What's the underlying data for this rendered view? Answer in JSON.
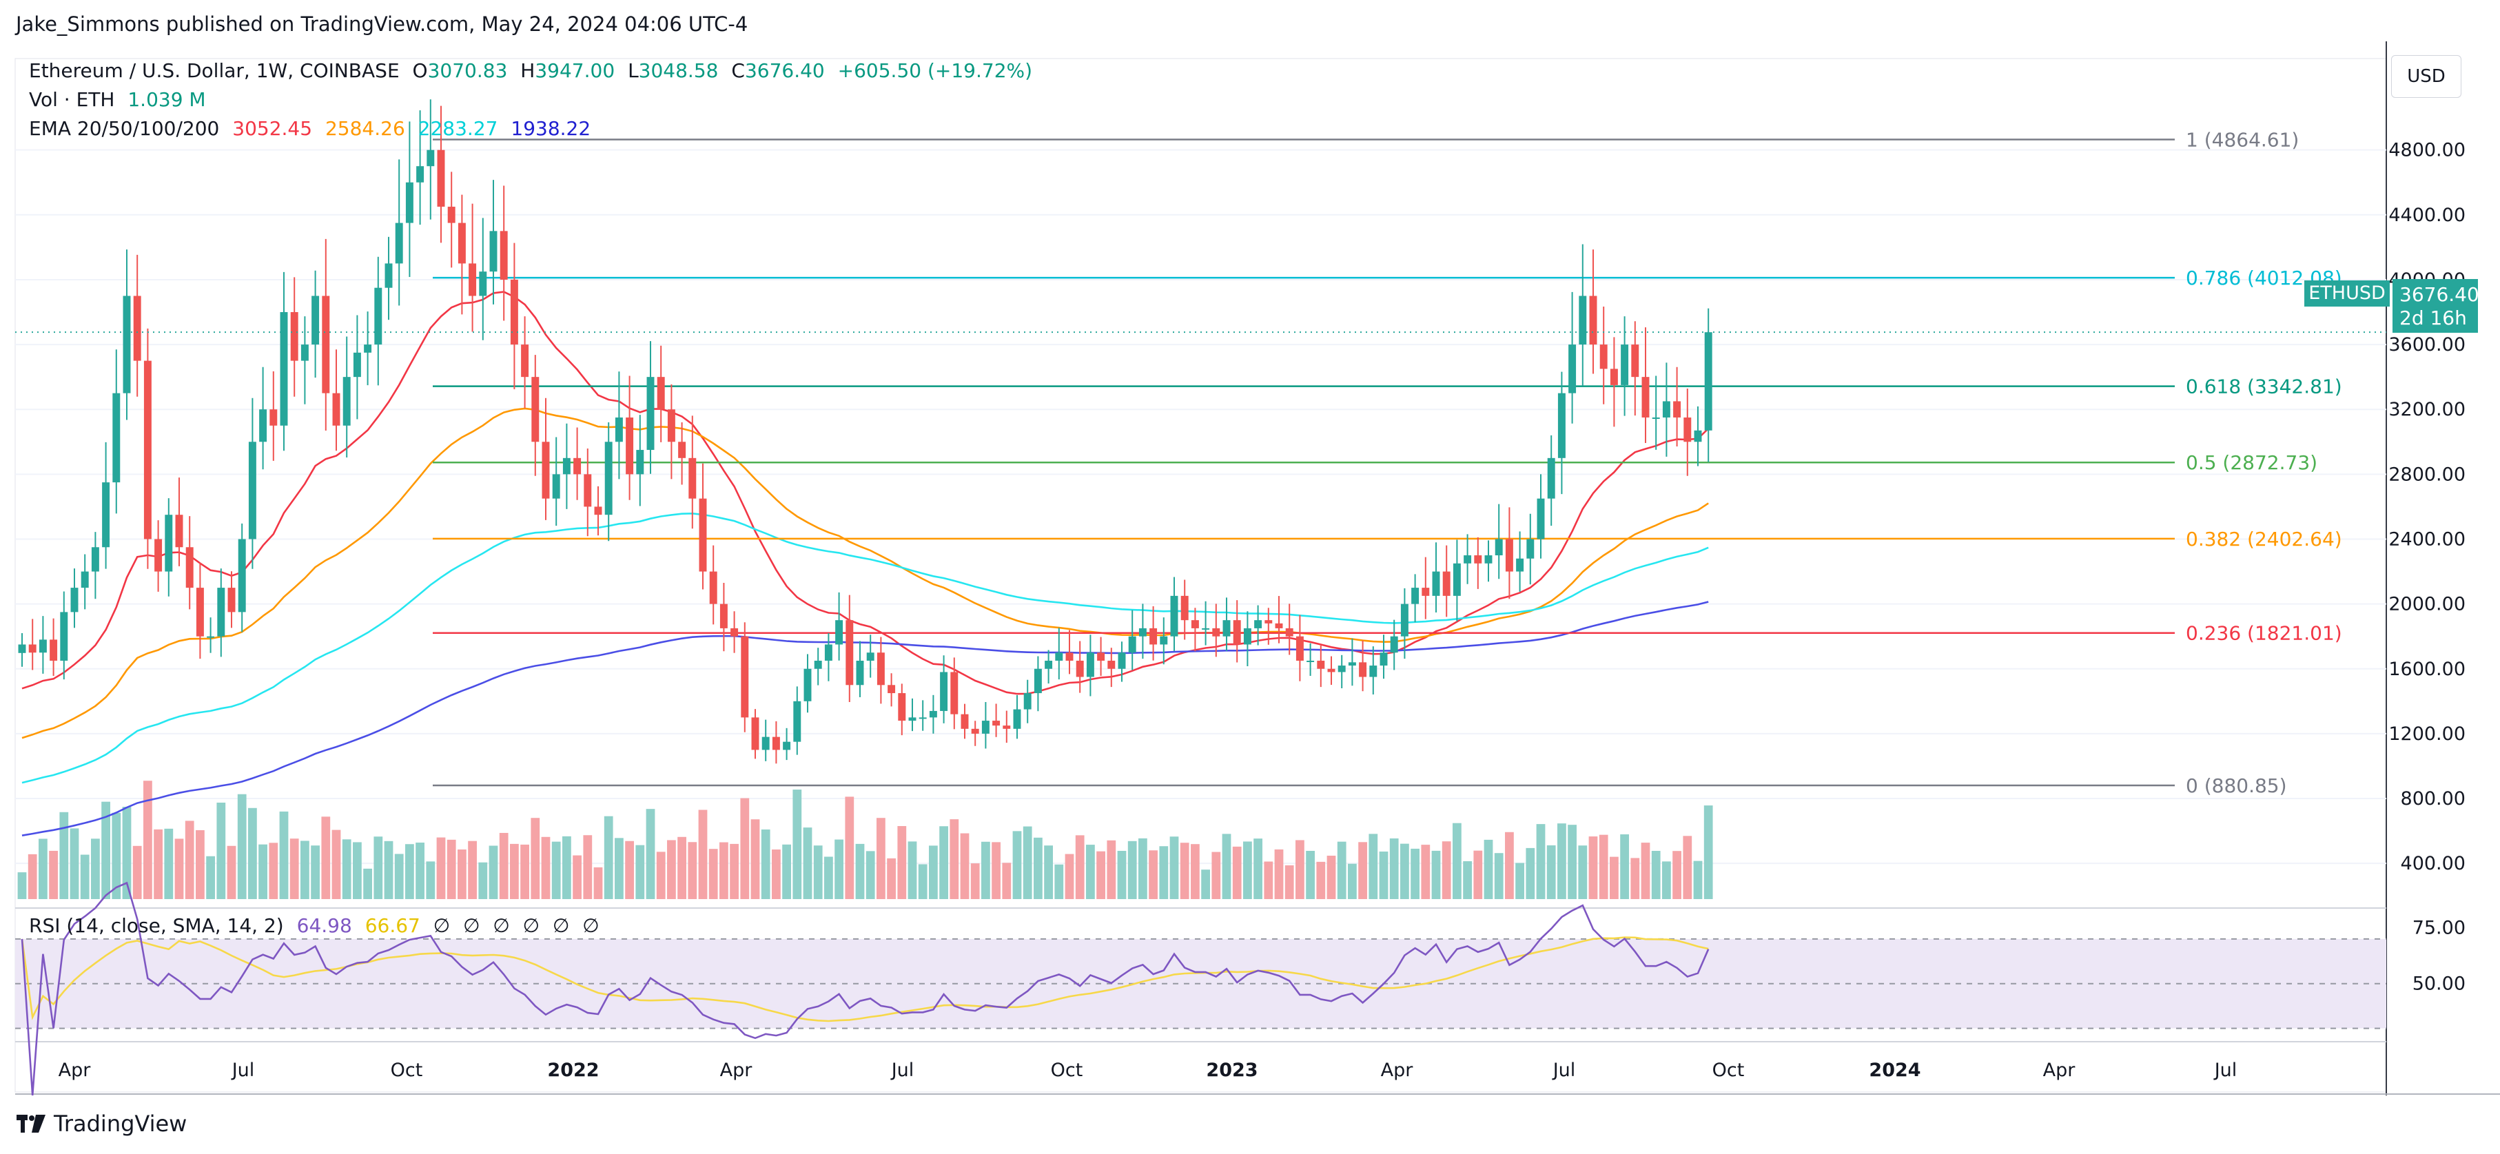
{
  "header": {
    "publisher": "Jake_Simmons published on TradingView.com, May 24, 2024 04:06 UTC-4"
  },
  "legend": {
    "symbol": "Ethereum / U.S. Dollar, 1W, COINBASE",
    "open_label": "O",
    "open": "3070.83",
    "high_label": "H",
    "high": "3947.00",
    "low_label": "L",
    "low": "3048.58",
    "close_label": "C",
    "close": "3676.40",
    "change": "+605.50 (+19.72%)",
    "vol_label": "Vol · ETH",
    "vol": "1.039 M",
    "ema_label": "EMA 20/50/100/200",
    "ema20": "3052.45",
    "ema50": "2584.26",
    "ema100": "2283.27",
    "ema200": "1938.22",
    "rsi_label": "RSI (14, close, SMA, 14, 2)",
    "rsi": "64.98",
    "rsi_sma": "66.67",
    "empty_slots": [
      "∅",
      "∅",
      "∅",
      "∅",
      "∅",
      "∅"
    ]
  },
  "currency": "USD",
  "last_price": {
    "symbol": "ETHUSD",
    "price": "3676.40",
    "countdown": "2d 16h",
    "value": 3676.4
  },
  "brand": "TradingView",
  "colors": {
    "up": "#26a69a",
    "down": "#ef5350",
    "up_vol": "#8fd0c9",
    "down_vol": "#f5a3a6",
    "ema20": "#f23645",
    "ema50": "#ff9800",
    "ema100": "#26e6f0",
    "ema200": "#4a4ee6",
    "rsi": "#7e57c2",
    "rsi_sma": "#f7d849",
    "rsi_band": "#ede7f6"
  },
  "chart_data": {
    "type": "candlestick",
    "interval": "1W",
    "y_axis": {
      "ticks": [
        400,
        800,
        1200,
        1600,
        2000,
        2400,
        2800,
        3200,
        3600,
        4000,
        4400,
        4800
      ],
      "ylim": [
        150,
        5300
      ]
    },
    "x_axis": {
      "tick_labels": [
        "Apr",
        "Jul",
        "Oct",
        "2022",
        "Apr",
        "Jul",
        "Oct",
        "2023",
        "Apr",
        "Jul",
        "Oct",
        "2024",
        "Apr",
        "Jul"
      ],
      "bold_labels": [
        "2022",
        "2023",
        "2024"
      ]
    },
    "fibonacci": [
      {
        "level": "1",
        "price": 4864.61,
        "label": "1 (4864.61)",
        "color": "#787b86"
      },
      {
        "level": "0.786",
        "price": 4012.08,
        "label": "0.786 (4012.08)",
        "color": "#00bcd4"
      },
      {
        "level": "0.618",
        "price": 3342.81,
        "label": "0.618 (3342.81)",
        "color": "#089981"
      },
      {
        "level": "0.5",
        "price": 2872.73,
        "label": "0.5 (2872.73)",
        "color": "#4caf50"
      },
      {
        "level": "0.382",
        "price": 2402.64,
        "label": "0.382 (2402.64)",
        "color": "#ff9800"
      },
      {
        "level": "0.236",
        "price": 1821.01,
        "label": "0.236 (1821.01)",
        "color": "#f23645"
      },
      {
        "level": "0",
        "price": 880.85,
        "label": "0 (880.85)",
        "color": "#787b86"
      }
    ],
    "candles_close": [
      1750,
      1700,
      1780,
      1650,
      1950,
      2100,
      2200,
      2350,
      2750,
      3300,
      3900,
      3500,
      2400,
      2200,
      2550,
      2350,
      2100,
      1800,
      1800,
      2100,
      1950,
      2400,
      3000,
      3200,
      3100,
      3800,
      3500,
      3600,
      3900,
      3300,
      3100,
      3400,
      3550,
      3600,
      3950,
      4100,
      4350,
      4600,
      4700,
      4800,
      4450,
      4350,
      4100,
      3900,
      4050,
      4300,
      4000,
      3600,
      3400,
      3000,
      2650,
      2800,
      2900,
      2800,
      2600,
      2550,
      3000,
      3150,
      2800,
      2950,
      3400,
      3200,
      3000,
      2900,
      2650,
      2200,
      2000,
      1850,
      1800,
      1300,
      1100,
      1180,
      1100,
      1150,
      1400,
      1600,
      1650,
      1750,
      1900,
      1500,
      1650,
      1700,
      1500,
      1450,
      1280,
      1300,
      1300,
      1340,
      1580,
      1320,
      1230,
      1200,
      1280,
      1250,
      1230,
      1350,
      1450,
      1600,
      1650,
      1700,
      1650,
      1550,
      1700,
      1650,
      1600,
      1700,
      1800,
      1850,
      1750,
      1800,
      2050,
      1900,
      1850,
      1850,
      1800,
      1900,
      1750,
      1850,
      1900,
      1880,
      1850,
      1800,
      1650,
      1650,
      1600,
      1580,
      1620,
      1640,
      1550,
      1620,
      1700,
      1800,
      2000,
      2100,
      2050,
      2200,
      2050,
      2250,
      2300,
      2250,
      2300,
      2400,
      2200,
      2280,
      2400,
      2650,
      2900,
      3300,
      3600,
      3900,
      3600,
      3450,
      3350,
      3600,
      3400,
      3150,
      3150,
      3250,
      3150,
      3000,
      3070,
      3676
    ],
    "volume_range": [
      0,
      1.8
    ]
  }
}
